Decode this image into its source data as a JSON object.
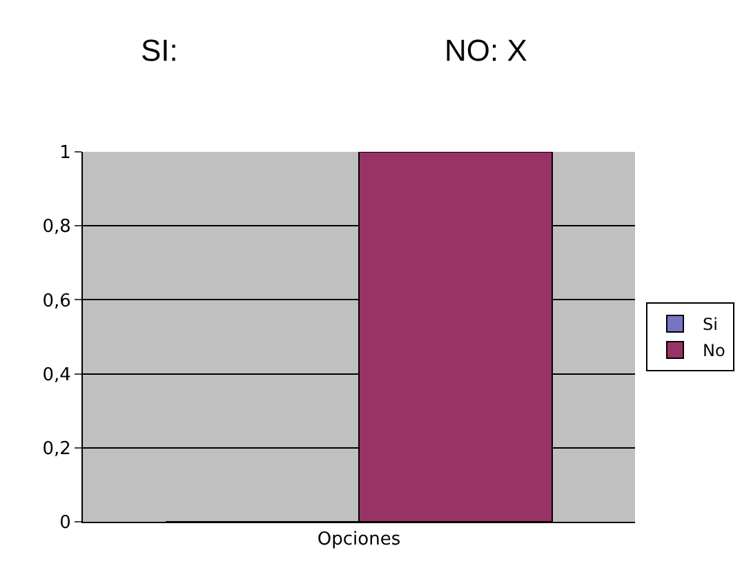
{
  "chart_data": {
    "type": "bar",
    "annotations": [
      "SI:",
      "NO: X"
    ],
    "categories": [
      "Opciones"
    ],
    "series": [
      {
        "name": "Si",
        "color": "#7774c2",
        "values": [
          0
        ]
      },
      {
        "name": "No",
        "color": "#993366",
        "values": [
          1
        ]
      }
    ],
    "ylim": [
      0,
      1
    ],
    "yticks": [
      0,
      {
        "value": 0.2,
        "label": "0,2"
      },
      {
        "value": 0.4,
        "label": "0,4"
      },
      {
        "value": 0.6,
        "label": "0,6"
      },
      {
        "value": 0.8,
        "label": "0,8"
      },
      1
    ],
    "grid": "y",
    "legend": "right"
  }
}
